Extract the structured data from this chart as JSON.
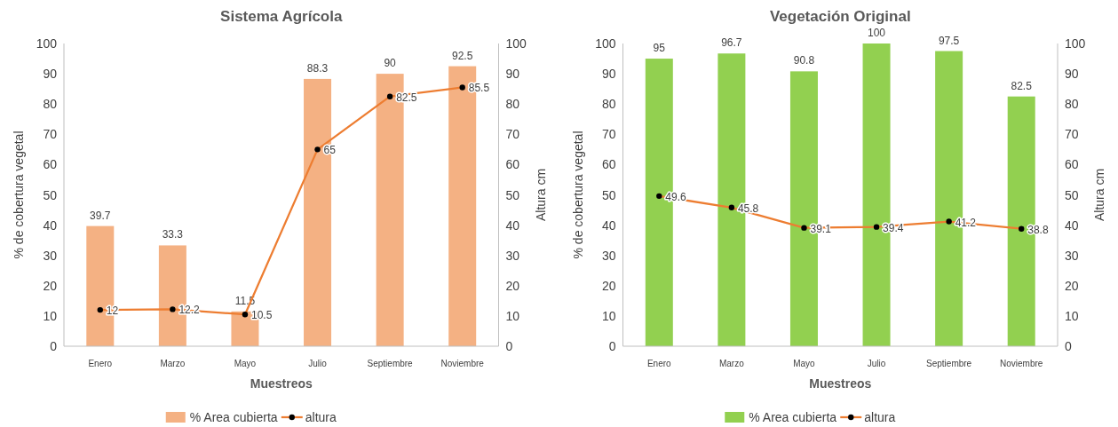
{
  "chart_data": [
    {
      "type": "bar",
      "title": "Sistema Agrícola",
      "xlabel": "Muestreos",
      "ylabel": "% de cobertura vegetal",
      "y2label": "Altura cm",
      "categories": [
        "Enero",
        "Marzo",
        "Mayo",
        "Julio",
        "Septiembre",
        "Noviembre"
      ],
      "series": [
        {
          "name": "% Area cubierta",
          "color": "#f4b183",
          "values": [
            39.7,
            33.3,
            11.5,
            88.3,
            90,
            92.5
          ]
        },
        {
          "name": "altura",
          "type": "line",
          "axis": "y2",
          "color": "#ed7d31",
          "marker": "circle",
          "values": [
            12,
            12.2,
            10.5,
            65,
            82.5,
            85.5
          ]
        }
      ],
      "ylim": [
        0,
        100
      ],
      "yticks": [
        0,
        10,
        20,
        30,
        40,
        50,
        60,
        70,
        80,
        90,
        100
      ],
      "y2lim": [
        0,
        100
      ],
      "y2ticks": [
        0,
        10,
        20,
        30,
        40,
        50,
        60,
        70,
        80,
        90,
        100
      ],
      "data_labels": true,
      "legend": "bottom"
    },
    {
      "type": "bar",
      "title": "Vegetación Original",
      "xlabel": "Muestreos",
      "ylabel": "% de cobertura vegetal",
      "y2label": "Altura cm",
      "categories": [
        "Enero",
        "Marzo",
        "Mayo",
        "Julio",
        "Septiembre",
        "Noviembre"
      ],
      "series": [
        {
          "name": "% Area cubierta",
          "color": "#92d050",
          "values": [
            95,
            96.7,
            90.8,
            100,
            97.5,
            82.5
          ]
        },
        {
          "name": "altura",
          "type": "line",
          "axis": "y2",
          "color": "#ed7d31",
          "marker": "circle",
          "values": [
            49.6,
            45.8,
            39.1,
            39.4,
            41.2,
            38.8
          ]
        }
      ],
      "ylim": [
        0,
        100
      ],
      "yticks": [
        0,
        10,
        20,
        30,
        40,
        50,
        60,
        70,
        80,
        90,
        100
      ],
      "y2lim": [
        0,
        100
      ],
      "y2ticks": [
        0,
        10,
        20,
        30,
        40,
        50,
        60,
        70,
        80,
        90,
        100
      ],
      "data_labels": true,
      "legend": "bottom"
    }
  ]
}
